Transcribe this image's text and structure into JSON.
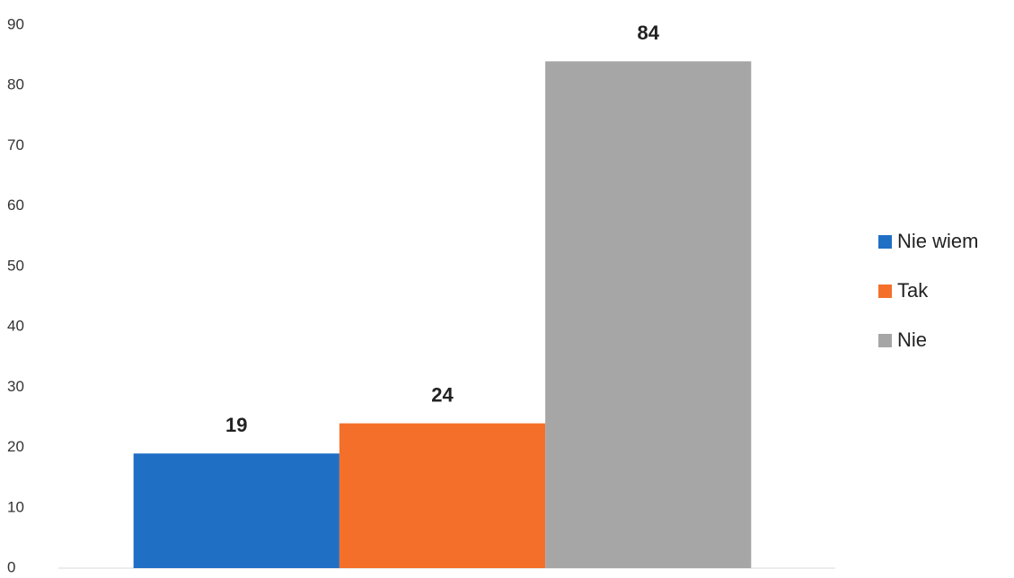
{
  "chart_data": {
    "type": "bar",
    "categories": [
      null
    ],
    "series": [
      {
        "name": "Nie wiem",
        "color": "#1f6fc5",
        "values": [
          19
        ]
      },
      {
        "name": "Tak",
        "color": "#f4702a",
        "values": [
          24
        ]
      },
      {
        "name": "Nie",
        "color": "#a6a6a6",
        "values": [
          84
        ]
      }
    ],
    "ylim": [
      0,
      90
    ],
    "yticks": [
      0,
      10,
      20,
      30,
      40,
      50,
      60,
      70,
      80,
      90
    ],
    "legend": "right"
  }
}
